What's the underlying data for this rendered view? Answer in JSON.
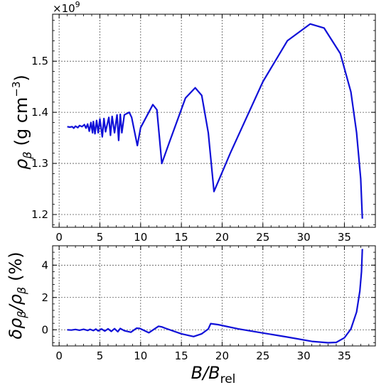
{
  "chart_data": [
    {
      "type": "line",
      "name": "top-panel",
      "xlabel_main": "B",
      "xlabel_sub": "rel",
      "ylabel_main": "ρ",
      "ylabel_sub": "β",
      "ylabel_units": "(g cm",
      "ylabel_exp": "−3",
      "ylabel_close": ")",
      "offset_base": "×10",
      "offset_exp": "9",
      "xlim": [
        -0.8,
        38.8
      ],
      "ylim": [
        1.175,
        1.592
      ],
      "xticks": [
        0,
        5,
        10,
        15,
        20,
        25,
        30,
        35
      ],
      "xtick_labels": [
        "0",
        "5",
        "10",
        "15",
        "20",
        "25",
        "30",
        "35"
      ],
      "yticks": [
        1.2,
        1.3,
        1.4,
        1.5
      ],
      "ytick_labels": [
        "1.2",
        "1.3",
        "1.4",
        "1.5"
      ],
      "grid": true,
      "color": "#1010d8",
      "series": [
        {
          "x": [
            1.0,
            1.3,
            1.6,
            1.8,
            2.0,
            2.3,
            2.5,
            2.8,
            3.1,
            3.3,
            3.5,
            3.7,
            3.9,
            4.1,
            4.2,
            4.4,
            4.6,
            4.8,
            5.0,
            5.3,
            5.5,
            5.7,
            6.1,
            6.3,
            6.5,
            6.8,
            7.1,
            7.3,
            7.5,
            7.7,
            8.0,
            8.6,
            8.9,
            9.6,
            10.0,
            11.5,
            12.0,
            12.6,
            13.5,
            15.5,
            16.7,
            17.5,
            18.3,
            19.0,
            21.0,
            25.0,
            28.0,
            30.8,
            32.5,
            34.5,
            35.8,
            36.5,
            37.0,
            37.2
          ],
          "y": [
            1.372,
            1.371,
            1.372,
            1.369,
            1.373,
            1.37,
            1.374,
            1.372,
            1.376,
            1.369,
            1.377,
            1.363,
            1.38,
            1.36,
            1.382,
            1.358,
            1.384,
            1.36,
            1.387,
            1.352,
            1.388,
            1.362,
            1.39,
            1.355,
            1.392,
            1.36,
            1.395,
            1.345,
            1.396,
            1.36,
            1.395,
            1.4,
            1.39,
            1.335,
            1.37,
            1.415,
            1.405,
            1.3,
            1.34,
            1.428,
            1.448,
            1.433,
            1.36,
            1.245,
            1.32,
            1.46,
            1.54,
            1.573,
            1.565,
            1.515,
            1.44,
            1.36,
            1.27,
            1.192
          ]
        }
      ]
    },
    {
      "type": "line",
      "name": "bottom-panel",
      "xlabel_main": "B",
      "xlabel_sub": "rel",
      "ylabel_text": "δρ",
      "ylabel_sub1": "β",
      "ylabel_mid": "/ρ",
      "ylabel_sub2": "β",
      "ylabel_units": "(%)",
      "xlim": [
        -0.8,
        38.8
      ],
      "ylim": [
        -1.0,
        5.2
      ],
      "xticks": [
        0,
        5,
        10,
        15,
        20,
        25,
        30,
        35
      ],
      "xtick_labels": [
        "0",
        "5",
        "10",
        "15",
        "20",
        "25",
        "30",
        "35"
      ],
      "yticks": [
        0,
        2,
        4
      ],
      "ytick_labels": [
        "0",
        "2",
        "4"
      ],
      "grid": true,
      "color": "#1010d8",
      "series": [
        {
          "x": [
            1.0,
            1.5,
            2.0,
            2.5,
            3.0,
            3.5,
            3.8,
            4.2,
            4.5,
            4.8,
            5.2,
            5.6,
            6.0,
            6.4,
            6.8,
            7.2,
            7.5,
            8.0,
            8.8,
            9.5,
            9.9,
            11.0,
            12.2,
            12.6,
            13.0,
            15.0,
            16.5,
            17.5,
            18.3,
            18.6,
            19.5,
            22.0,
            25.0,
            28.0,
            31.0,
            33.0,
            34.0,
            35.0,
            35.8,
            36.5,
            36.9,
            37.1,
            37.2
          ],
          "y": [
            0.0,
            -0.02,
            0.02,
            -0.03,
            0.03,
            -0.04,
            0.03,
            -0.05,
            0.04,
            -0.07,
            0.05,
            -0.08,
            0.06,
            -0.1,
            0.07,
            -0.12,
            0.08,
            -0.06,
            -0.15,
            0.1,
            0.08,
            -0.18,
            0.22,
            0.18,
            0.1,
            -0.25,
            -0.42,
            -0.25,
            0.05,
            0.38,
            0.32,
            0.05,
            -0.2,
            -0.45,
            -0.72,
            -0.8,
            -0.78,
            -0.5,
            0.05,
            1.1,
            2.4,
            3.6,
            5.0
          ]
        }
      ]
    }
  ]
}
